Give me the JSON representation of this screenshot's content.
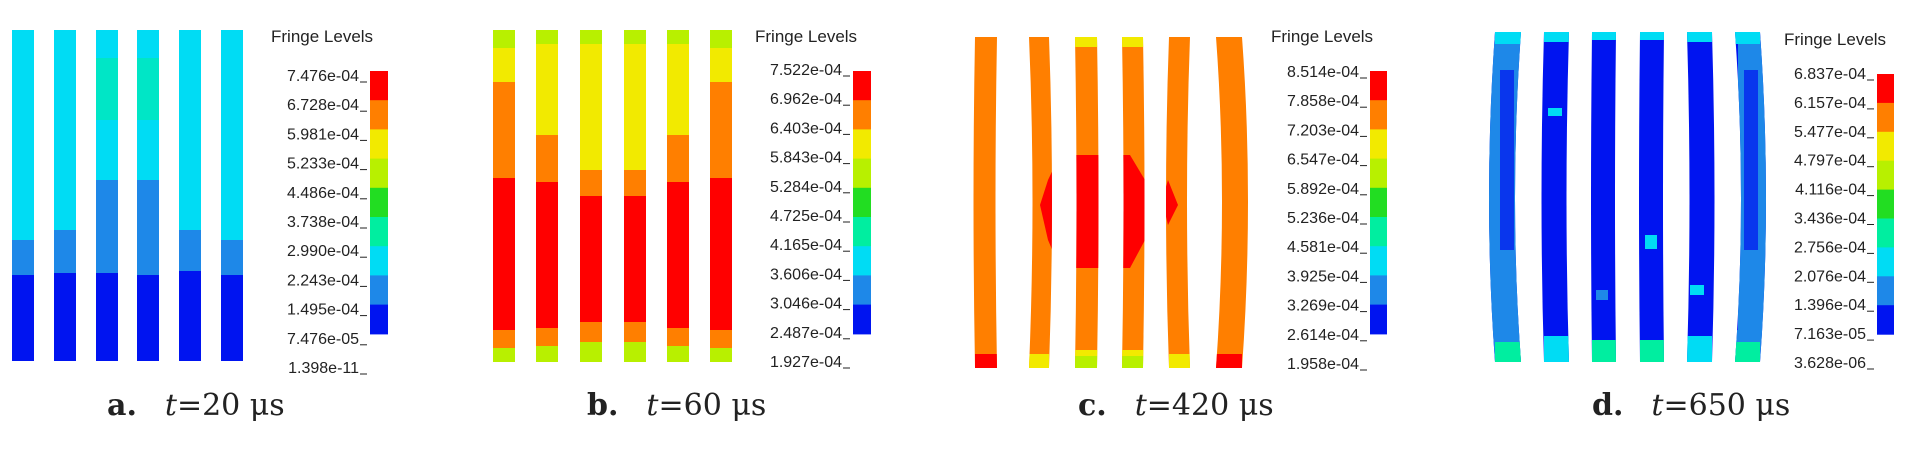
{
  "colors": {
    "red": "#ff0000",
    "orange": "#ff7f00",
    "yellow": "#f2ea00",
    "yellow_green": "#b8f000",
    "green": "#22dd22",
    "aqua_green": "#00eea0",
    "cyan": "#00dcf4",
    "sky": "#1e88e8",
    "blue": "#0014f0"
  },
  "legend_band_colors": [
    "#ff0000",
    "#ff7f00",
    "#f2ea00",
    "#b8f000",
    "#22dd22",
    "#00eea0",
    "#00dcf4",
    "#1e88e8",
    "#0014f0"
  ],
  "panels": [
    {
      "id": "a",
      "legend_title": "Fringe Levels",
      "levels": [
        "7.476e-04",
        "6.728e-04",
        "5.981e-04",
        "5.233e-04",
        "4.486e-04",
        "3.738e-04",
        "2.990e-04",
        "2.243e-04",
        "1.495e-04",
        "7.476e-05",
        "1.398e-11"
      ],
      "caption_letter": "a.",
      "caption_var": "t",
      "caption_value": "=20 μs"
    },
    {
      "id": "b",
      "legend_title": "Fringe Levels",
      "levels": [
        "7.522e-04",
        "6.962e-04",
        "6.403e-04",
        "5.843e-04",
        "5.284e-04",
        "4.725e-04",
        "4.165e-04",
        "3.606e-04",
        "3.046e-04",
        "2.487e-04",
        "1.927e-04"
      ],
      "caption_letter": "b.",
      "caption_var": "t",
      "caption_value": "=60 μs"
    },
    {
      "id": "c",
      "legend_title": "Fringe Levels",
      "levels": [
        "8.514e-04",
        "7.858e-04",
        "7.203e-04",
        "6.547e-04",
        "5.892e-04",
        "5.236e-04",
        "4.581e-04",
        "3.925e-04",
        "3.269e-04",
        "2.614e-04",
        "1.958e-04"
      ],
      "caption_letter": "c.",
      "caption_var": "t",
      "caption_value": "=420 μs"
    },
    {
      "id": "d",
      "legend_title": "Fringe Levels",
      "levels": [
        "6.837e-04",
        "6.157e-04",
        "5.477e-04",
        "4.797e-04",
        "4.116e-04",
        "3.436e-04",
        "2.756e-04",
        "2.076e-04",
        "1.396e-04",
        "7.163e-05",
        "3.628e-06"
      ],
      "caption_letter": "d.",
      "caption_var": "t",
      "caption_value": "=650 μs"
    }
  ]
}
